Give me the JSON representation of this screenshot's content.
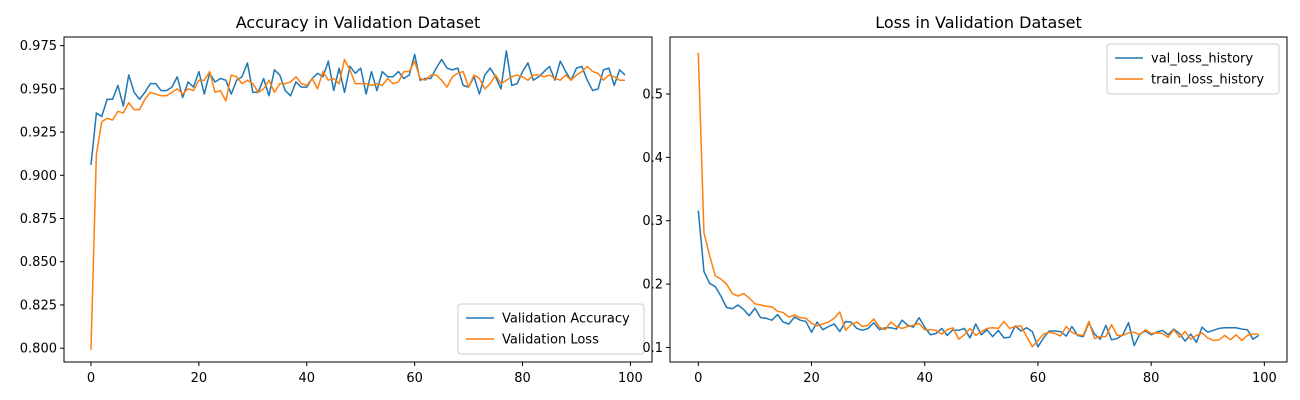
{
  "chart_data": [
    {
      "type": "line",
      "title": "Accuracy in Validation Dataset",
      "xlabel": "",
      "ylabel": "",
      "xlim": [
        -5,
        104
      ],
      "ylim": [
        0.792,
        0.98
      ],
      "xticks": [
        0,
        20,
        40,
        60,
        80,
        100
      ],
      "yticks": [
        0.8,
        0.825,
        0.85,
        0.875,
        0.9,
        0.925,
        0.95,
        0.975
      ],
      "grid": false,
      "legend_position": "lower-right",
      "series": [
        {
          "name": "Validation Accuracy",
          "color": "#1f77b4",
          "values": [
            0.906,
            0.936,
            0.934,
            0.944,
            0.944,
            0.952,
            0.94,
            0.958,
            0.948,
            0.944,
            0.948,
            0.953,
            0.953,
            0.949,
            0.949,
            0.951,
            0.957,
            0.945,
            0.954,
            0.951,
            0.96,
            0.947,
            0.959,
            0.954,
            0.956,
            0.955,
            0.947,
            0.955,
            0.957,
            0.965,
            0.948,
            0.948,
            0.956,
            0.946,
            0.961,
            0.958,
            0.949,
            0.946,
            0.954,
            0.951,
            0.951,
            0.956,
            0.959,
            0.957,
            0.966,
            0.949,
            0.962,
            0.948,
            0.963,
            0.959,
            0.962,
            0.947,
            0.96,
            0.949,
            0.96,
            0.957,
            0.957,
            0.96,
            0.956,
            0.958,
            0.97,
            0.955,
            0.956,
            0.956,
            0.962,
            0.967,
            0.962,
            0.961,
            0.962,
            0.952,
            0.951,
            0.957,
            0.947,
            0.958,
            0.962,
            0.957,
            0.95,
            0.972,
            0.952,
            0.953,
            0.96,
            0.965,
            0.955,
            0.957,
            0.96,
            0.963,
            0.955,
            0.966,
            0.96,
            0.955,
            0.962,
            0.963,
            0.955,
            0.949,
            0.95,
            0.961,
            0.962,
            0.952,
            0.961,
            0.958
          ]
        },
        {
          "name": "Validation Loss",
          "color": "#ff7f0e",
          "values": [
            0.799,
            0.912,
            0.931,
            0.933,
            0.932,
            0.937,
            0.936,
            0.942,
            0.938,
            0.938,
            0.944,
            0.948,
            0.947,
            0.946,
            0.946,
            0.948,
            0.95,
            0.947,
            0.95,
            0.949,
            0.955,
            0.955,
            0.96,
            0.948,
            0.949,
            0.943,
            0.958,
            0.957,
            0.953,
            0.955,
            0.953,
            0.948,
            0.95,
            0.955,
            0.948,
            0.953,
            0.953,
            0.954,
            0.957,
            0.953,
            0.952,
            0.956,
            0.95,
            0.96,
            0.955,
            0.956,
            0.953,
            0.967,
            0.961,
            0.953,
            0.953,
            0.953,
            0.952,
            0.953,
            0.952,
            0.956,
            0.953,
            0.954,
            0.96,
            0.96,
            0.966,
            0.956,
            0.955,
            0.958,
            0.958,
            0.955,
            0.951,
            0.957,
            0.959,
            0.96,
            0.951,
            0.958,
            0.956,
            0.95,
            0.953,
            0.958,
            0.953,
            0.955,
            0.957,
            0.958,
            0.957,
            0.955,
            0.958,
            0.958,
            0.957,
            0.958,
            0.956,
            0.955,
            0.958,
            0.955,
            0.958,
            0.96,
            0.963,
            0.96,
            0.959,
            0.955,
            0.958,
            0.957,
            0.955,
            0.955
          ]
        }
      ]
    },
    {
      "type": "line",
      "title": "Loss in Validation Dataset",
      "xlabel": "",
      "ylabel": "",
      "xlim": [
        -5,
        104
      ],
      "ylim": [
        0.077,
        0.59
      ],
      "xticks": [
        0,
        20,
        40,
        60,
        80,
        100
      ],
      "yticks": [
        0.1,
        0.2,
        0.3,
        0.4,
        0.5
      ],
      "grid": false,
      "legend_position": "upper-right",
      "series": [
        {
          "name": "val_loss_history",
          "color": "#1f77b4",
          "values": [
            0.316,
            0.22,
            0.201,
            0.196,
            0.181,
            0.163,
            0.161,
            0.167,
            0.16,
            0.15,
            0.162,
            0.147,
            0.146,
            0.143,
            0.152,
            0.14,
            0.137,
            0.148,
            0.143,
            0.141,
            0.124,
            0.14,
            0.128,
            0.133,
            0.137,
            0.125,
            0.141,
            0.14,
            0.13,
            0.127,
            0.13,
            0.139,
            0.128,
            0.131,
            0.131,
            0.129,
            0.143,
            0.135,
            0.132,
            0.147,
            0.132,
            0.12,
            0.122,
            0.13,
            0.119,
            0.128,
            0.127,
            0.13,
            0.115,
            0.137,
            0.12,
            0.128,
            0.117,
            0.127,
            0.115,
            0.116,
            0.134,
            0.126,
            0.131,
            0.125,
            0.101,
            0.115,
            0.126,
            0.126,
            0.125,
            0.118,
            0.133,
            0.119,
            0.117,
            0.139,
            0.121,
            0.113,
            0.135,
            0.112,
            0.114,
            0.12,
            0.139,
            0.103,
            0.121,
            0.126,
            0.12,
            0.124,
            0.127,
            0.12,
            0.129,
            0.122,
            0.11,
            0.121,
            0.108,
            0.132,
            0.124,
            0.127,
            0.13,
            0.131,
            0.131,
            0.131,
            0.129,
            0.128,
            0.113,
            0.119
          ]
        },
        {
          "name": "train_loss_history",
          "color": "#ff7f0e",
          "values": [
            0.565,
            0.281,
            0.245,
            0.213,
            0.208,
            0.2,
            0.185,
            0.181,
            0.185,
            0.178,
            0.169,
            0.167,
            0.165,
            0.164,
            0.157,
            0.155,
            0.148,
            0.151,
            0.147,
            0.146,
            0.138,
            0.134,
            0.137,
            0.14,
            0.146,
            0.156,
            0.127,
            0.136,
            0.14,
            0.133,
            0.135,
            0.145,
            0.132,
            0.128,
            0.14,
            0.133,
            0.13,
            0.133,
            0.135,
            0.138,
            0.128,
            0.128,
            0.127,
            0.121,
            0.128,
            0.131,
            0.113,
            0.12,
            0.13,
            0.119,
            0.125,
            0.13,
            0.131,
            0.13,
            0.141,
            0.13,
            0.133,
            0.134,
            0.117,
            0.101,
            0.111,
            0.121,
            0.124,
            0.122,
            0.118,
            0.133,
            0.124,
            0.12,
            0.119,
            0.141,
            0.114,
            0.117,
            0.117,
            0.136,
            0.119,
            0.119,
            0.123,
            0.124,
            0.12,
            0.128,
            0.122,
            0.123,
            0.122,
            0.116,
            0.128,
            0.116,
            0.125,
            0.113,
            0.119,
            0.123,
            0.115,
            0.111,
            0.112,
            0.119,
            0.112,
            0.12,
            0.111,
            0.119,
            0.121,
            0.121
          ]
        }
      ]
    }
  ]
}
